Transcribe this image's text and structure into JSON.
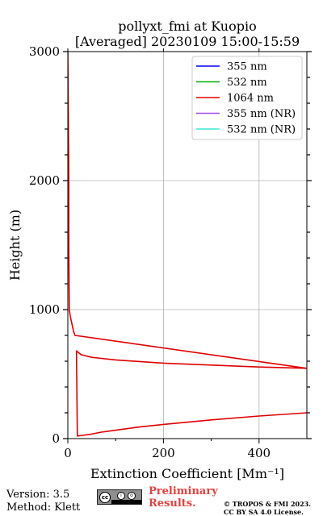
{
  "chart_data": {
    "type": "line",
    "title_line1": "pollyxt_fmi at Kuopio",
    "title_line2": "[Averaged] 20230109 15:00-15:59",
    "xlabel": "Extinction Coefficient [Mm⁻¹]",
    "ylabel": "Height (m)",
    "xlim": [
      0,
      500
    ],
    "ylim": [
      0,
      3000
    ],
    "xticks": [
      0,
      200,
      400
    ],
    "yticks": [
      0,
      1000,
      2000,
      3000
    ],
    "grid": true,
    "legend_position": "top-right",
    "series": [
      {
        "name": "355 nm",
        "color": "#0000ff",
        "x": [],
        "y": []
      },
      {
        "name": "532 nm",
        "color": "#00b000",
        "x": [],
        "y": []
      },
      {
        "name": "1064 nm",
        "color": "#e00000",
        "x": [
          500,
          400,
          300,
          200,
          150,
          100,
          70,
          50,
          30,
          20,
          20,
          20,
          18,
          28,
          50,
          100,
          200,
          300,
          400,
          500,
          15,
          12,
          5,
          3,
          2,
          2,
          1,
          0
        ],
        "y": [
          200,
          175,
          145,
          110,
          90,
          65,
          50,
          35,
          25,
          20,
          20,
          20,
          680,
          650,
          630,
          610,
          585,
          570,
          555,
          545,
          800,
          830,
          950,
          1000,
          1500,
          2000,
          2500,
          3000
        ]
      },
      {
        "name": "355 nm (NR)",
        "color": "#a04ee8",
        "x": [],
        "y": []
      },
      {
        "name": "532 nm (NR)",
        "color": "#40e8d8",
        "x": [],
        "y": []
      }
    ]
  },
  "footer": {
    "version": "Version: 3.5",
    "method": "Method: Klett",
    "preliminary": "Preliminary Results.",
    "copyright": "© TROPOS & FMI 2023. CC BY SA 4.0 License."
  }
}
